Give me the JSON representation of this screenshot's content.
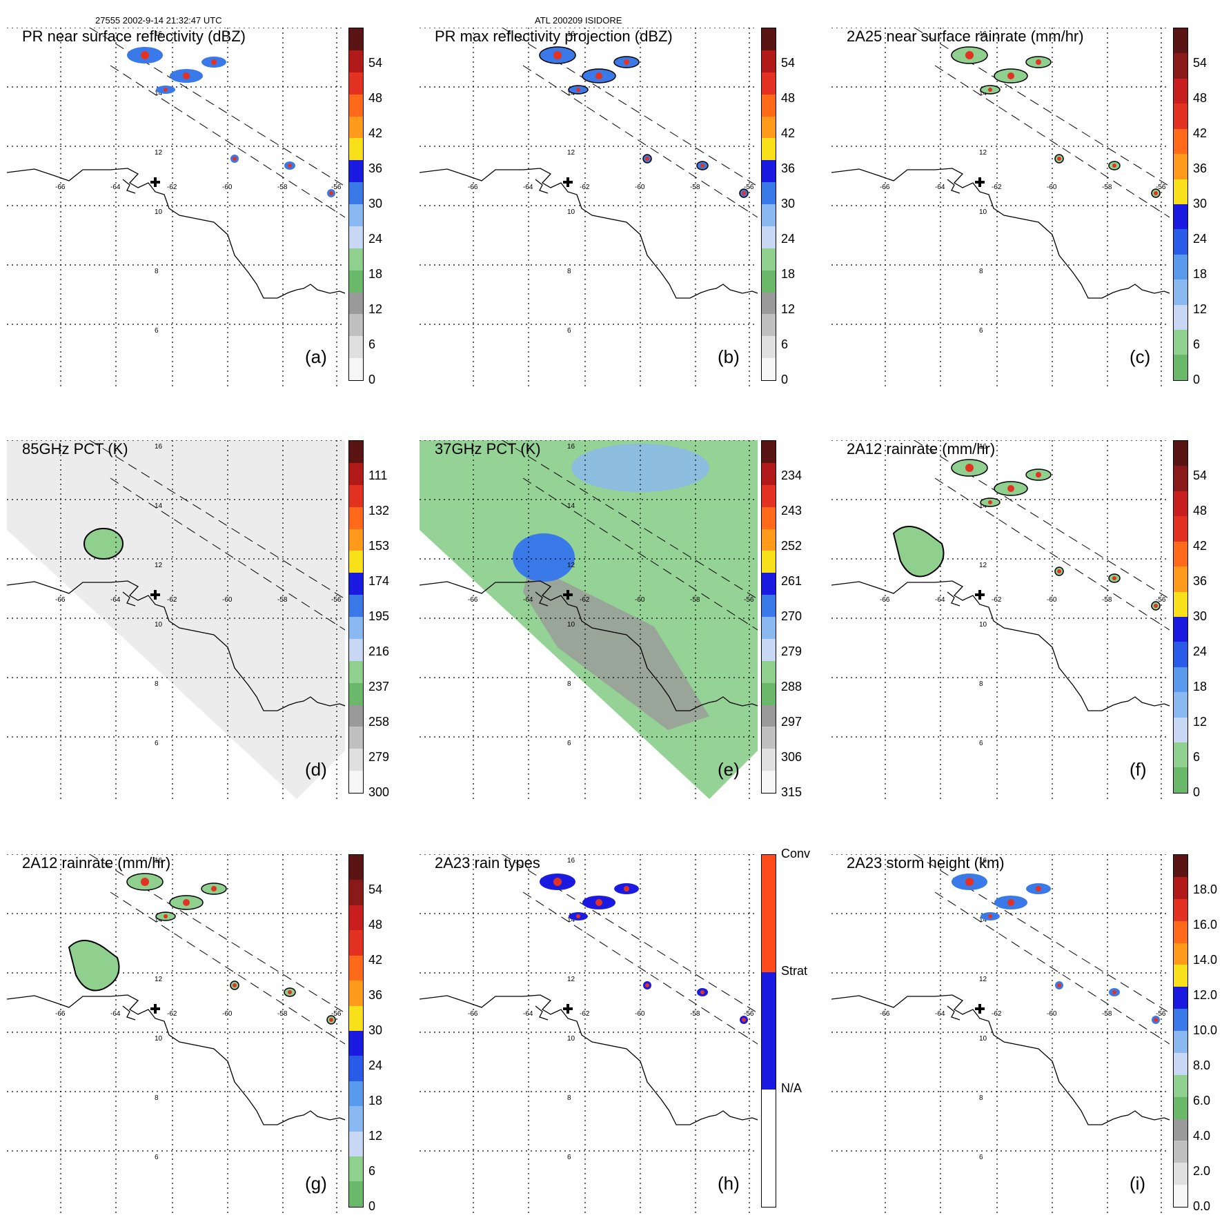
{
  "header": {
    "left": "27555 2002-9-14 21:32:47 UTC",
    "center": "ATL 200209 ISIDORE"
  },
  "axes": {
    "lon_labels": [
      "-66",
      "-64",
      "-62",
      "-60",
      "-58",
      "-56"
    ],
    "lat_labels": [
      "16",
      "14",
      "12",
      "10",
      "8",
      "6"
    ]
  },
  "panels": [
    {
      "id": "a",
      "title": "PR near surface reflectivity (dBZ)",
      "letter": "(a)",
      "colorbar": {
        "ticks": [
          "54",
          "48",
          "42",
          "36",
          "30",
          "24",
          "18",
          "12",
          "6",
          "0"
        ],
        "colors": [
          "#5a1414",
          "#b21a1a",
          "#e43222",
          "#ff6a1a",
          "#ff9a1a",
          "#f8e01a",
          "#1a1ae0",
          "#3a7ae8",
          "#8ab8f0",
          "#c8d8f4",
          "#8fd08f",
          "#6ab86a",
          "#9a9a9a",
          "#c0c0c0",
          "#e0e0e0",
          "#f6f6f6"
        ]
      }
    },
    {
      "id": "b",
      "title": "PR max reflectivity projection (dBZ)",
      "letter": "(b)",
      "colorbar": {
        "ticks": [
          "54",
          "48",
          "42",
          "36",
          "30",
          "24",
          "18",
          "12",
          "6",
          "0"
        ],
        "colors": [
          "#5a1414",
          "#b21a1a",
          "#e43222",
          "#ff6a1a",
          "#ff9a1a",
          "#f8e01a",
          "#1a1ae0",
          "#3a7ae8",
          "#8ab8f0",
          "#c8d8f4",
          "#8fd08f",
          "#6ab86a",
          "#9a9a9a",
          "#c0c0c0",
          "#e0e0e0",
          "#f6f6f6"
        ]
      }
    },
    {
      "id": "c",
      "title": "2A25 near surface rainrate (mm/hr)",
      "letter": "(c)",
      "colorbar": {
        "ticks": [
          "54",
          "48",
          "42",
          "36",
          "30",
          "24",
          "18",
          "12",
          "6",
          "0"
        ],
        "colors": [
          "#5a1414",
          "#8a1a1a",
          "#c81e1e",
          "#e43222",
          "#ff6a1a",
          "#ff9a1a",
          "#f8e01a",
          "#1a1ae0",
          "#2a5ae8",
          "#5a9aec",
          "#8ab8f0",
          "#c8d8f4",
          "#8fd08f",
          "#6ab86a"
        ]
      }
    },
    {
      "id": "d",
      "title": "85GHz PCT (K)",
      "letter": "(d)",
      "colorbar": {
        "ticks": [
          "111",
          "132",
          "153",
          "174",
          "195",
          "216",
          "237",
          "258",
          "279",
          "300"
        ],
        "colors": [
          "#5a1414",
          "#b21a1a",
          "#e43222",
          "#ff6a1a",
          "#ff9a1a",
          "#f8e01a",
          "#1a1ae0",
          "#3a7ae8",
          "#8ab8f0",
          "#c8d8f4",
          "#8fd08f",
          "#6ab86a",
          "#9a9a9a",
          "#c0c0c0",
          "#e0e0e0",
          "#f6f6f6"
        ]
      }
    },
    {
      "id": "e",
      "title": "37GHz PCT (K)",
      "letter": "(e)",
      "colorbar": {
        "ticks": [
          "234",
          "243",
          "252",
          "261",
          "270",
          "279",
          "288",
          "297",
          "306",
          "315"
        ],
        "colors": [
          "#5a1414",
          "#b21a1a",
          "#e43222",
          "#ff6a1a",
          "#ff9a1a",
          "#f8e01a",
          "#1a1ae0",
          "#3a7ae8",
          "#8ab8f0",
          "#c8d8f4",
          "#8fd08f",
          "#6ab86a",
          "#9a9a9a",
          "#c0c0c0",
          "#e0e0e0",
          "#f6f6f6"
        ]
      }
    },
    {
      "id": "f",
      "title": "2A12 rainrate (mm/hr)",
      "letter": "(f)",
      "colorbar": {
        "ticks": [
          "54",
          "48",
          "42",
          "36",
          "30",
          "24",
          "18",
          "12",
          "6",
          "0"
        ],
        "colors": [
          "#5a1414",
          "#8a1a1a",
          "#c81e1e",
          "#e43222",
          "#ff6a1a",
          "#ff9a1a",
          "#f8e01a",
          "#1a1ae0",
          "#2a5ae8",
          "#5a9aec",
          "#8ab8f0",
          "#c8d8f4",
          "#8fd08f",
          "#6ab86a"
        ]
      }
    },
    {
      "id": "g",
      "title": "2A12 rainrate (mm/hr)",
      "letter": "(g)",
      "colorbar": {
        "ticks": [
          "54",
          "48",
          "42",
          "36",
          "30",
          "24",
          "18",
          "12",
          "6",
          "0"
        ],
        "colors": [
          "#5a1414",
          "#8a1a1a",
          "#c81e1e",
          "#e43222",
          "#ff6a1a",
          "#ff9a1a",
          "#f8e01a",
          "#1a1ae0",
          "#2a5ae8",
          "#5a9aec",
          "#8ab8f0",
          "#c8d8f4",
          "#8fd08f",
          "#6ab86a"
        ]
      }
    },
    {
      "id": "h",
      "title": "2A23 rain types",
      "letter": "(h)",
      "colorbar": {
        "ticks": [
          "Conv",
          "Strat",
          "N/A"
        ],
        "colors": [
          "#ff4a1a",
          "#1a1ae0",
          "#ffffff"
        ]
      }
    },
    {
      "id": "i",
      "title": "2A23 storm height (km)",
      "letter": "(i)",
      "colorbar": {
        "ticks": [
          "18.0",
          "16.0",
          "14.0",
          "12.0",
          "10.0",
          "8.0",
          "6.0",
          "4.0",
          "2.0",
          "0.0"
        ],
        "colors": [
          "#5a1414",
          "#b21a1a",
          "#e43222",
          "#ff6a1a",
          "#ff9a1a",
          "#f8e01a",
          "#1a1ae0",
          "#3a7ae8",
          "#8ab8f0",
          "#c8d8f4",
          "#8fd08f",
          "#6ab86a",
          "#9a9a9a",
          "#c0c0c0",
          "#e0e0e0",
          "#f6f6f6"
        ]
      }
    }
  ]
}
